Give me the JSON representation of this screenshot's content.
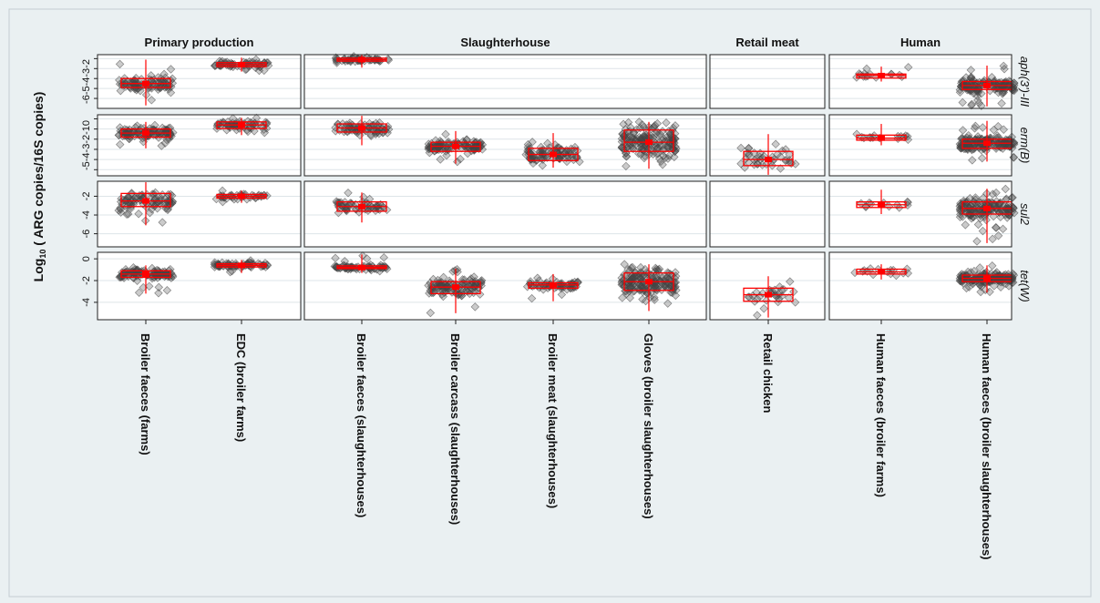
{
  "chart_data": {
    "type": "scatter",
    "subtype": "faceted jittered dot plot with box plots",
    "ylabel_prefix": "Log",
    "ylabel_sub": "10",
    "ylabel_rest": " ( ARG copies/16S copies)",
    "columns": [
      {
        "name": "Primary production",
        "samples": [
          "Broiler faeces (farms)",
          "EDC (broiler farms)"
        ]
      },
      {
        "name": "Slaughterhouse",
        "samples": [
          "Broiler faeces (slaughterhouses)",
          "Broiler carcass (slaughterhouses)",
          "Broiler meat (slaughterhouses)",
          "Gloves (broiler slaughterhouses)"
        ]
      },
      {
        "name": "Retail meat",
        "samples": [
          "Retail chicken"
        ]
      },
      {
        "name": "Human",
        "samples": [
          "Human faeces (broiler farms)",
          "Human faeces (broiler slaughterhouses)"
        ]
      }
    ],
    "rows": [
      {
        "gene": "aph(3')-III",
        "ylim": [
          -7,
          -1.6
        ],
        "ticks": [
          -2,
          -3,
          -4,
          -5,
          -6
        ],
        "tick_labels": [
          "-2",
          "-3",
          "-4",
          "-5",
          "-6"
        ],
        "tick_label_text": "-6-5-4-3-2",
        "groups": [
          {
            "sample": 0,
            "median": -4.5,
            "q1": -4.9,
            "q3": -4.0,
            "min": -6.7,
            "max": -2.1,
            "n": 90
          },
          {
            "sample": 1,
            "median": -2.6,
            "q1": -2.8,
            "q3": -2.4,
            "min": -3.3,
            "max": -1.9,
            "n": 60
          },
          {
            "sample": 2,
            "median": -2.1,
            "q1": -2.25,
            "q3": -1.95,
            "min": -2.9,
            "max": -1.6,
            "n": 55
          },
          {
            "sample": 7,
            "median": -3.7,
            "q1": -3.95,
            "q3": -3.55,
            "min": -4.3,
            "max": -2.8,
            "n": 15
          },
          {
            "sample": 8,
            "median": -4.7,
            "q1": -5.1,
            "q3": -4.3,
            "min": -6.8,
            "max": -2.7,
            "n": 150
          }
        ]
      },
      {
        "gene": "erm(B)",
        "ylim": [
          -5.6,
          0.4
        ],
        "ticks": [
          0,
          -1,
          -2,
          -3,
          -4,
          -5
        ],
        "tick_labels": [
          "0",
          "-1",
          "-2",
          "-3",
          "-4",
          "-5"
        ],
        "tick_label_text": "-5-4-3-2-10",
        "groups": [
          {
            "sample": 0,
            "median": -1.4,
            "q1": -1.8,
            "q3": -1.0,
            "min": -2.9,
            "max": -0.3,
            "n": 110
          },
          {
            "sample": 1,
            "median": -0.6,
            "q1": -0.95,
            "q3": -0.3,
            "min": -1.6,
            "max": 0.1,
            "n": 60
          },
          {
            "sample": 2,
            "median": -0.9,
            "q1": -1.3,
            "q3": -0.5,
            "min": -2.6,
            "max": 0.3,
            "n": 70
          },
          {
            "sample": 3,
            "median": -2.7,
            "q1": -3.2,
            "q3": -2.3,
            "min": -4.4,
            "max": -1.2,
            "n": 110
          },
          {
            "sample": 4,
            "median": -3.5,
            "q1": -4.1,
            "q3": -2.9,
            "min": -4.8,
            "max": -1.4,
            "n": 90
          },
          {
            "sample": 5,
            "median": -2.3,
            "q1": -3.2,
            "q3": -1.1,
            "min": -4.9,
            "max": -0.3,
            "n": 170
          },
          {
            "sample": 6,
            "median": -4.0,
            "q1": -4.6,
            "q3": -3.2,
            "min": -5.5,
            "max": -1.5,
            "n": 40
          },
          {
            "sample": 7,
            "median": -1.9,
            "q1": -2.1,
            "q3": -1.6,
            "min": -2.6,
            "max": -0.5,
            "n": 15
          },
          {
            "sample": 8,
            "median": -2.4,
            "q1": -2.9,
            "q3": -2.0,
            "min": -4.2,
            "max": -0.2,
            "n": 170
          }
        ]
      },
      {
        "gene": "sul2",
        "ylim": [
          -7.4,
          -0.4
        ],
        "ticks": [
          -2,
          -4,
          -6
        ],
        "tick_labels": [
          "-2",
          "-4",
          "-6"
        ],
        "groups": [
          {
            "sample": 0,
            "median": -2.5,
            "q1": -3.1,
            "q3": -1.7,
            "min": -5.1,
            "max": -0.5,
            "n": 90
          },
          {
            "sample": 1,
            "median": -2.0,
            "q1": -2.2,
            "q3": -1.8,
            "min": -2.7,
            "max": -1.4,
            "n": 40
          },
          {
            "sample": 2,
            "median": -3.1,
            "q1": -3.6,
            "q3": -2.6,
            "min": -4.8,
            "max": -1.6,
            "n": 55
          },
          {
            "sample": 7,
            "median": -2.9,
            "q1": -3.2,
            "q3": -2.6,
            "min": -3.9,
            "max": -1.3,
            "n": 12
          },
          {
            "sample": 8,
            "median": -3.3,
            "q1": -3.9,
            "q3": -2.6,
            "min": -7.0,
            "max": -1.2,
            "n": 160
          }
        ]
      },
      {
        "gene": "tet(W)",
        "ylim": [
          -5.6,
          0.6
        ],
        "ticks": [
          0,
          -2,
          -4
        ],
        "tick_labels": [
          "0",
          "-2",
          "-4"
        ],
        "groups": [
          {
            "sample": 0,
            "median": -1.4,
            "q1": -1.7,
            "q3": -1.1,
            "min": -3.2,
            "max": -0.6,
            "n": 110
          },
          {
            "sample": 1,
            "median": -0.6,
            "q1": -0.75,
            "q3": -0.45,
            "min": -1.3,
            "max": -0.1,
            "n": 70
          },
          {
            "sample": 2,
            "median": -0.8,
            "q1": -0.9,
            "q3": -0.65,
            "min": -1.3,
            "max": 0.4,
            "n": 70
          },
          {
            "sample": 3,
            "median": -2.6,
            "q1": -3.2,
            "q3": -2.1,
            "min": -5.0,
            "max": -0.9,
            "n": 110
          },
          {
            "sample": 4,
            "median": -2.4,
            "q1": -2.7,
            "q3": -2.2,
            "min": -3.9,
            "max": -1.4,
            "n": 60
          },
          {
            "sample": 5,
            "median": -2.1,
            "q1": -2.9,
            "q3": -1.3,
            "min": -4.8,
            "max": -0.5,
            "n": 170
          },
          {
            "sample": 6,
            "median": -3.3,
            "q1": -3.9,
            "q3": -2.7,
            "min": -5.4,
            "max": -1.6,
            "n": 30
          },
          {
            "sample": 7,
            "median": -1.2,
            "q1": -1.4,
            "q3": -0.95,
            "min": -1.9,
            "max": -0.5,
            "n": 15
          },
          {
            "sample": 8,
            "median": -1.8,
            "q1": -2.1,
            "q3": -1.5,
            "min": -3.1,
            "max": -0.6,
            "n": 170
          }
        ]
      }
    ],
    "colors": {
      "background": "#eaf0f2",
      "panel": "#ffffff",
      "point": "#444444",
      "box": "#ff0000",
      "grid": "#dde4e8",
      "frame": "#222222"
    }
  }
}
